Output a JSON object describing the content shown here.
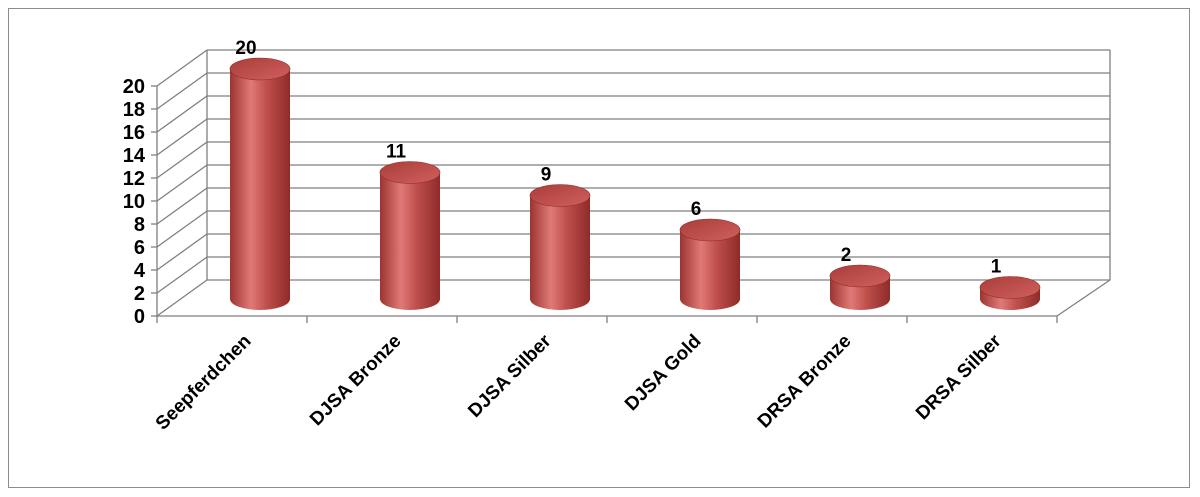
{
  "chart_data": {
    "type": "bar",
    "style": "3d-cylinder",
    "categories": [
      "Seepferdchen",
      "DJSA Bronze",
      "DJSA Silber",
      "DJSA Gold",
      "DRSA Bronze",
      "DRSA Silber"
    ],
    "values": [
      20,
      11,
      9,
      6,
      2,
      1
    ],
    "data_labels": [
      "20",
      "11",
      "9",
      "6",
      "2",
      "1"
    ],
    "title": "",
    "xlabel": "",
    "ylabel": "",
    "ylim": [
      0,
      20
    ],
    "yticks": [
      0,
      2,
      4,
      6,
      8,
      10,
      12,
      14,
      16,
      18,
      20
    ],
    "ytick_labels": [
      "0",
      "2",
      "4",
      "6",
      "8",
      "10",
      "12",
      "14",
      "16",
      "18",
      "20"
    ],
    "grid": true,
    "legend": "none",
    "colors": {
      "bar_fill": "#c0504d",
      "bar_light": "#e07a77",
      "bar_dark": "#8e2b29",
      "bar_top": "#b8403d",
      "gridline": "#7f7f7f",
      "axis": "#7f7f7f",
      "text": "#000000"
    }
  }
}
